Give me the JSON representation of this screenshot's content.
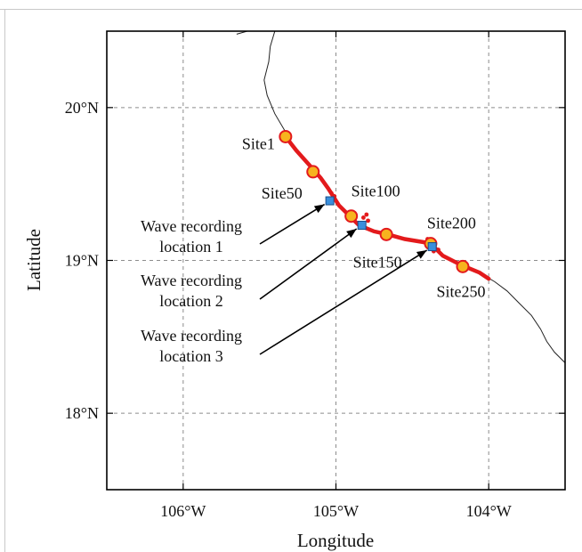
{
  "axes": {
    "xlabel": "Longitude",
    "ylabel": "Latitude",
    "xlim": [
      -106.5,
      -103.5
    ],
    "ylim": [
      17.5,
      20.5
    ],
    "x_ticks": [
      {
        "value": -106,
        "label": "106°W"
      },
      {
        "value": -105,
        "label": "105°W"
      },
      {
        "value": -104,
        "label": "104°W"
      }
    ],
    "y_ticks": [
      {
        "value": 20,
        "label": "20°N"
      },
      {
        "value": 19,
        "label": "19°N"
      },
      {
        "value": 18,
        "label": "18°N"
      }
    ],
    "grid": true
  },
  "coastline": [
    [
      -105.65,
      20.48
    ],
    [
      -105.58,
      20.5
    ],
    [
      -105.4,
      20.5
    ],
    [
      -105.43,
      20.4
    ],
    [
      -105.44,
      20.3
    ],
    [
      -105.47,
      20.18
    ],
    [
      -105.45,
      20.08
    ],
    [
      -105.4,
      19.96
    ],
    [
      -105.33,
      19.84
    ],
    [
      -105.26,
      19.72
    ],
    [
      -105.17,
      19.62
    ],
    [
      -105.1,
      19.54
    ],
    [
      -105.04,
      19.44
    ],
    [
      -104.98,
      19.36
    ],
    [
      -104.91,
      19.29
    ],
    [
      -104.85,
      19.23
    ],
    [
      -104.75,
      19.19
    ],
    [
      -104.66,
      19.17
    ],
    [
      -104.55,
      19.14
    ],
    [
      -104.43,
      19.12
    ],
    [
      -104.38,
      19.11
    ],
    [
      -104.3,
      19.03
    ],
    [
      -104.18,
      18.97
    ],
    [
      -104.06,
      18.92
    ],
    [
      -103.96,
      18.86
    ],
    [
      -103.88,
      18.8
    ],
    [
      -103.8,
      18.72
    ],
    [
      -103.72,
      18.64
    ],
    [
      -103.66,
      18.55
    ],
    [
      -103.62,
      18.47
    ],
    [
      -103.57,
      18.4
    ],
    [
      -103.5,
      18.33
    ]
  ],
  "highlighted_shore": [
    [
      -105.33,
      19.81
    ],
    [
      -105.26,
      19.72
    ],
    [
      -105.17,
      19.62
    ],
    [
      -105.1,
      19.54
    ],
    [
      -105.05,
      19.47
    ],
    [
      -104.98,
      19.36
    ],
    [
      -104.91,
      19.29
    ],
    [
      -104.85,
      19.23
    ],
    [
      -104.75,
      19.19
    ],
    [
      -104.66,
      19.17
    ],
    [
      -104.55,
      19.14
    ],
    [
      -104.43,
      19.12
    ],
    [
      -104.38,
      19.11
    ],
    [
      -104.3,
      19.03
    ],
    [
      -104.18,
      18.97
    ],
    [
      -104.06,
      18.92
    ],
    [
      -104.0,
      18.88
    ]
  ],
  "extra_points": [
    [
      -105.03,
      19.44
    ],
    [
      -105.01,
      19.42
    ],
    [
      -104.82,
      19.28
    ],
    [
      -104.8,
      19.3
    ],
    [
      -104.79,
      19.26
    ],
    [
      -104.36,
      19.06
    ],
    [
      -104.33,
      19.07
    ],
    [
      -104.4,
      19.14
    ]
  ],
  "sites": [
    {
      "name": "Site1",
      "lon": -105.33,
      "lat": 19.81,
      "anchor": "end"
    },
    {
      "name": "Site50",
      "lon": -105.15,
      "lat": 19.58,
      "anchor": "end"
    },
    {
      "name": "Site100",
      "lon": -104.9,
      "lat": 19.29,
      "anchor": "start"
    },
    {
      "name": "Site150",
      "lon": -104.67,
      "lat": 19.17,
      "anchor": "middle"
    },
    {
      "name": "Site200",
      "lon": -104.38,
      "lat": 19.11,
      "anchor": "start"
    },
    {
      "name": "Site250",
      "lon": -104.17,
      "lat": 18.96,
      "anchor": "middle"
    }
  ],
  "recording_locations": [
    {
      "line1": "Wave recording",
      "line2": "location 1",
      "lon": -105.04,
      "lat": 19.39
    },
    {
      "line1": "Wave recording",
      "line2": "location 2",
      "lon": -104.83,
      "lat": 19.23
    },
    {
      "line1": "Wave recording",
      "line2": "location 3",
      "lon": -104.37,
      "lat": 19.09
    }
  ],
  "colors": {
    "shore": "#e31a1c",
    "site_fill": "#f7b31e",
    "recording_fill": "#3a8fdc"
  }
}
